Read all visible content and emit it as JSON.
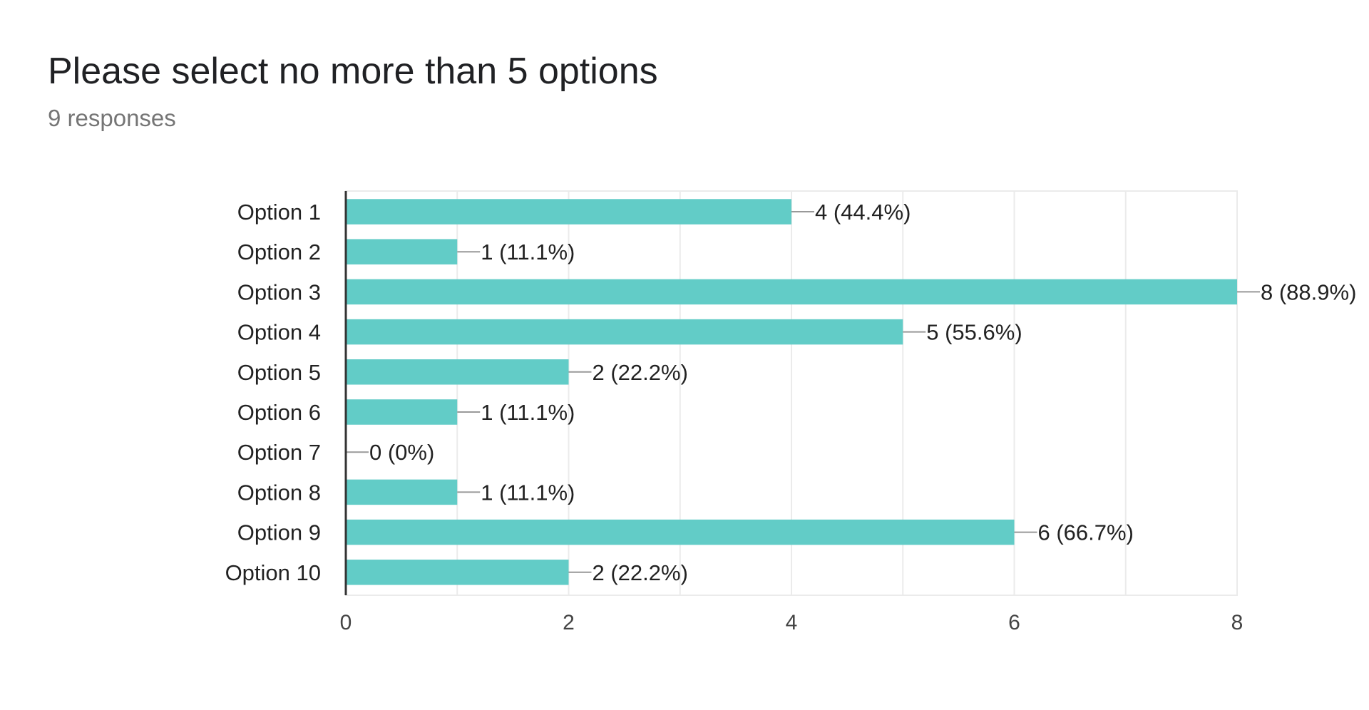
{
  "header": {
    "title": "Please select no more than 5 options",
    "subtitle": "9 responses"
  },
  "colors": {
    "bar": "#62ccc7",
    "grid": "#ebebeb",
    "axis": "#333333",
    "label": "#222222",
    "tick": "#444444",
    "leader": "#999999"
  },
  "chart_data": {
    "type": "bar",
    "orientation": "horizontal",
    "categories": [
      "Option 1",
      "Option 2",
      "Option 3",
      "Option 4",
      "Option 5",
      "Option 6",
      "Option 7",
      "Option 8",
      "Option 9",
      "Option 10"
    ],
    "values": [
      4,
      1,
      8,
      5,
      2,
      1,
      0,
      1,
      6,
      2
    ],
    "data_labels": [
      "4 (44.4%)",
      "1 (11.1%)",
      "8 (88.9%)",
      "5 (55.6%)",
      "2 (22.2%)",
      "1 (11.1%)",
      "0 (0%)",
      "1 (11.1%)",
      "6 (66.7%)",
      "2 (22.2%)"
    ],
    "xlim": [
      0,
      8
    ],
    "xticks": [
      0,
      2,
      4,
      6,
      8
    ],
    "grid": true
  }
}
